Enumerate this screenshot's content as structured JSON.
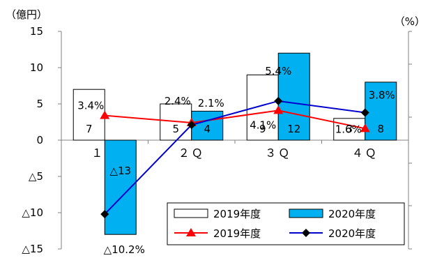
{
  "chart_data": {
    "type": "bar",
    "title": "",
    "left_unit": "（億円）",
    "right_unit": "（%）",
    "categories": [
      "１Ｑ",
      "２Ｑ",
      "３Ｑ",
      "４Ｑ"
    ],
    "ylim": [
      -15,
      15
    ],
    "y_ticks": [
      {
        "value": 15,
        "label": "15"
      },
      {
        "value": 10,
        "label": "10"
      },
      {
        "value": 5,
        "label": "5"
      },
      {
        "value": 0,
        "label": "0"
      },
      {
        "value": -5,
        "label": "△5"
      },
      {
        "value": -10,
        "label": "△10"
      },
      {
        "value": -15,
        "label": "△15"
      }
    ],
    "bar_series": [
      {
        "name": "2019年度",
        "color": "#ffffff",
        "values": [
          7,
          5,
          9,
          3
        ],
        "labels": [
          "7",
          "5",
          "9",
          "3"
        ]
      },
      {
        "name": "2020年度",
        "color": "#00b0f0",
        "values": [
          -13,
          4,
          12,
          8
        ],
        "labels": [
          "△13",
          "4",
          "12",
          "8"
        ]
      }
    ],
    "line_series": [
      {
        "name": "2019年度",
        "color": "#ff0000",
        "marker": "triangle",
        "values": [
          3.4,
          2.4,
          4.1,
          1.6
        ],
        "labels": [
          "3.4%",
          "2.4%",
          "4.1%",
          "1.6%"
        ]
      },
      {
        "name": "2020年度",
        "color": "#0000cc",
        "marker": "diamond",
        "values": [
          -10.2,
          2.1,
          5.4,
          3.8
        ],
        "labels": [
          "△10.2%",
          "2.1%",
          "5.4%",
          "3.8%"
        ]
      }
    ],
    "legend_position": "bottom-right",
    "grid": false
  }
}
